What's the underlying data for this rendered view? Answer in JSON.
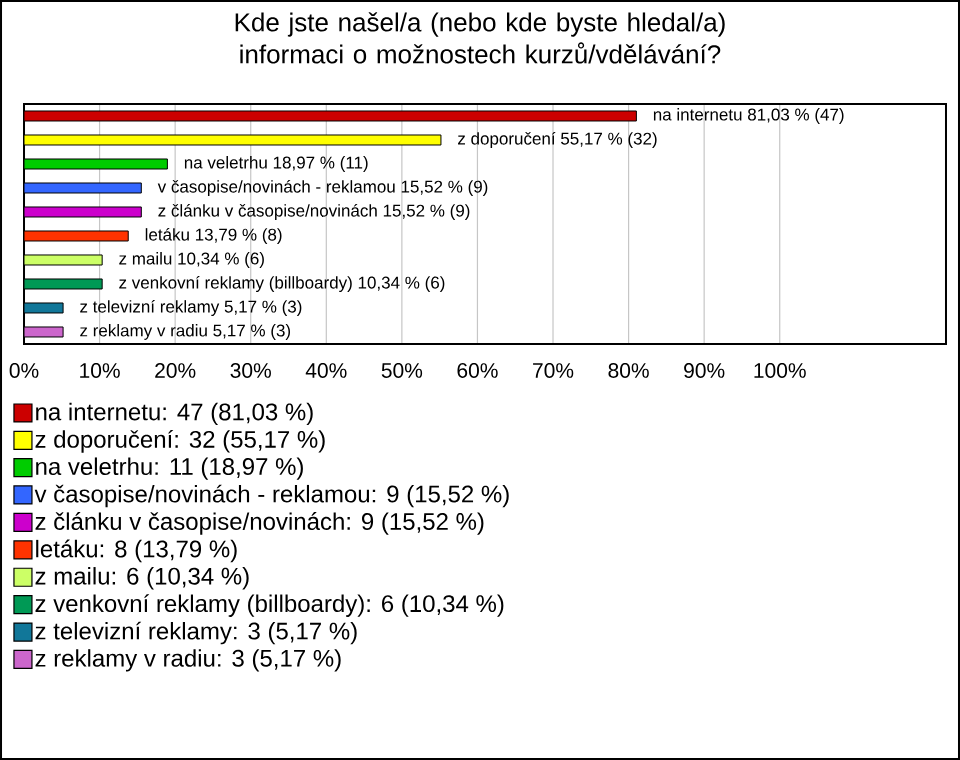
{
  "chart_data": {
    "type": "bar",
    "orientation": "horizontal",
    "title": "Kde jste našel/a (nebo kde byste hledal/a) informaci o možnostech kurzů/vdělávání?",
    "categories": [
      null,
      null,
      null,
      null,
      null,
      null,
      null,
      null,
      null,
      null
    ],
    "series": [
      {
        "name": "na internetu: 47 (81,03 %)",
        "color": "#cc0000",
        "values": [
          81.03,
          null,
          null,
          null,
          null,
          null,
          null,
          null,
          null,
          null
        ],
        "value_labels": [
          "na internetu 81,03 % (47)",
          null,
          null,
          null,
          null,
          null,
          null,
          null,
          null,
          null
        ]
      },
      {
        "name": "z doporučení: 32 (55,17 %)",
        "color": "#ffff00",
        "values": [
          null,
          55.17,
          null,
          null,
          null,
          null,
          null,
          null,
          null,
          null
        ],
        "value_labels": [
          null,
          "z doporučení 55,17 % (32)",
          null,
          null,
          null,
          null,
          null,
          null,
          null,
          null
        ]
      },
      {
        "name": "na veletrhu: 11 (18,97 %)",
        "color": "#00cc00",
        "values": [
          null,
          null,
          18.97,
          null,
          null,
          null,
          null,
          null,
          null,
          null
        ],
        "value_labels": [
          null,
          null,
          "na veletrhu 18,97 % (11)",
          null,
          null,
          null,
          null,
          null,
          null,
          null
        ]
      },
      {
        "name": "v časopise/novinách - reklamou: 9 (15,52 %)",
        "color": "#3366ff",
        "values": [
          null,
          null,
          null,
          15.52,
          null,
          null,
          null,
          null,
          null,
          null
        ],
        "value_labels": [
          null,
          null,
          null,
          "v časopise/novinách - reklamou 15,52 % (9)",
          null,
          null,
          null,
          null,
          null,
          null
        ]
      },
      {
        "name": "z článku v časopise/novinách: 9 (15,52 %)",
        "color": "#cc00cc",
        "values": [
          null,
          null,
          null,
          null,
          15.52,
          null,
          null,
          null,
          null,
          null
        ],
        "value_labels": [
          null,
          null,
          null,
          null,
          "z článku v časopise/novinách 15,52 % (9)",
          null,
          null,
          null,
          null,
          null
        ]
      },
      {
        "name": "letáku: 8 (13,79 %)",
        "color": "#ff3300",
        "values": [
          null,
          null,
          null,
          null,
          null,
          13.79,
          null,
          null,
          null,
          null
        ],
        "value_labels": [
          null,
          null,
          null,
          null,
          null,
          "letáku 13,79 % (8)",
          null,
          null,
          null,
          null
        ]
      },
      {
        "name": "z mailu: 6 (10,34 %)",
        "color": "#ccff66",
        "values": [
          null,
          null,
          null,
          null,
          null,
          null,
          10.34,
          null,
          null,
          null
        ],
        "value_labels": [
          null,
          null,
          null,
          null,
          null,
          null,
          "z mailu 10,34 % (6)",
          null,
          null,
          null
        ]
      },
      {
        "name": "z venkovní reklamy (billboardy): 6 (10,34 %)",
        "color": "#009955",
        "values": [
          null,
          null,
          null,
          null,
          null,
          null,
          null,
          10.34,
          null,
          null
        ],
        "value_labels": [
          null,
          null,
          null,
          null,
          null,
          null,
          null,
          "z venkovní reklamy (billboardy) 10,34 % (6)",
          null,
          null
        ]
      },
      {
        "name": "z televizní reklamy: 3 (5,17 %)",
        "color": "#117799",
        "values": [
          null,
          null,
          null,
          null,
          null,
          null,
          null,
          null,
          5.17,
          null
        ],
        "value_labels": [
          null,
          null,
          null,
          null,
          null,
          null,
          null,
          null,
          "z televizní reklamy 5,17 % (3)",
          null
        ]
      },
      {
        "name": "z reklamy v radiu: 3 (5,17 %)",
        "color": "#cc66cc",
        "values": [
          null,
          null,
          null,
          null,
          null,
          null,
          null,
          null,
          null,
          5.17
        ],
        "value_labels": [
          null,
          null,
          null,
          null,
          null,
          null,
          null,
          null,
          null,
          "z reklamy v radiu 5,17 % (3)"
        ]
      }
    ],
    "xlim": [
      0,
      122
    ],
    "xticks": [
      {
        "value": 0,
        "label": "0%"
      },
      {
        "value": 10,
        "label": "10%"
      },
      {
        "value": 20,
        "label": "20%"
      },
      {
        "value": 30,
        "label": "30%"
      },
      {
        "value": 40,
        "label": "40%"
      },
      {
        "value": 50,
        "label": "50%"
      },
      {
        "value": 60,
        "label": "60%"
      },
      {
        "value": 70,
        "label": "70%"
      },
      {
        "value": 80,
        "label": "80%"
      },
      {
        "value": 90,
        "label": "90%"
      },
      {
        "value": 100,
        "label": "100%"
      }
    ],
    "grid": "x",
    "legend": "bottom"
  }
}
